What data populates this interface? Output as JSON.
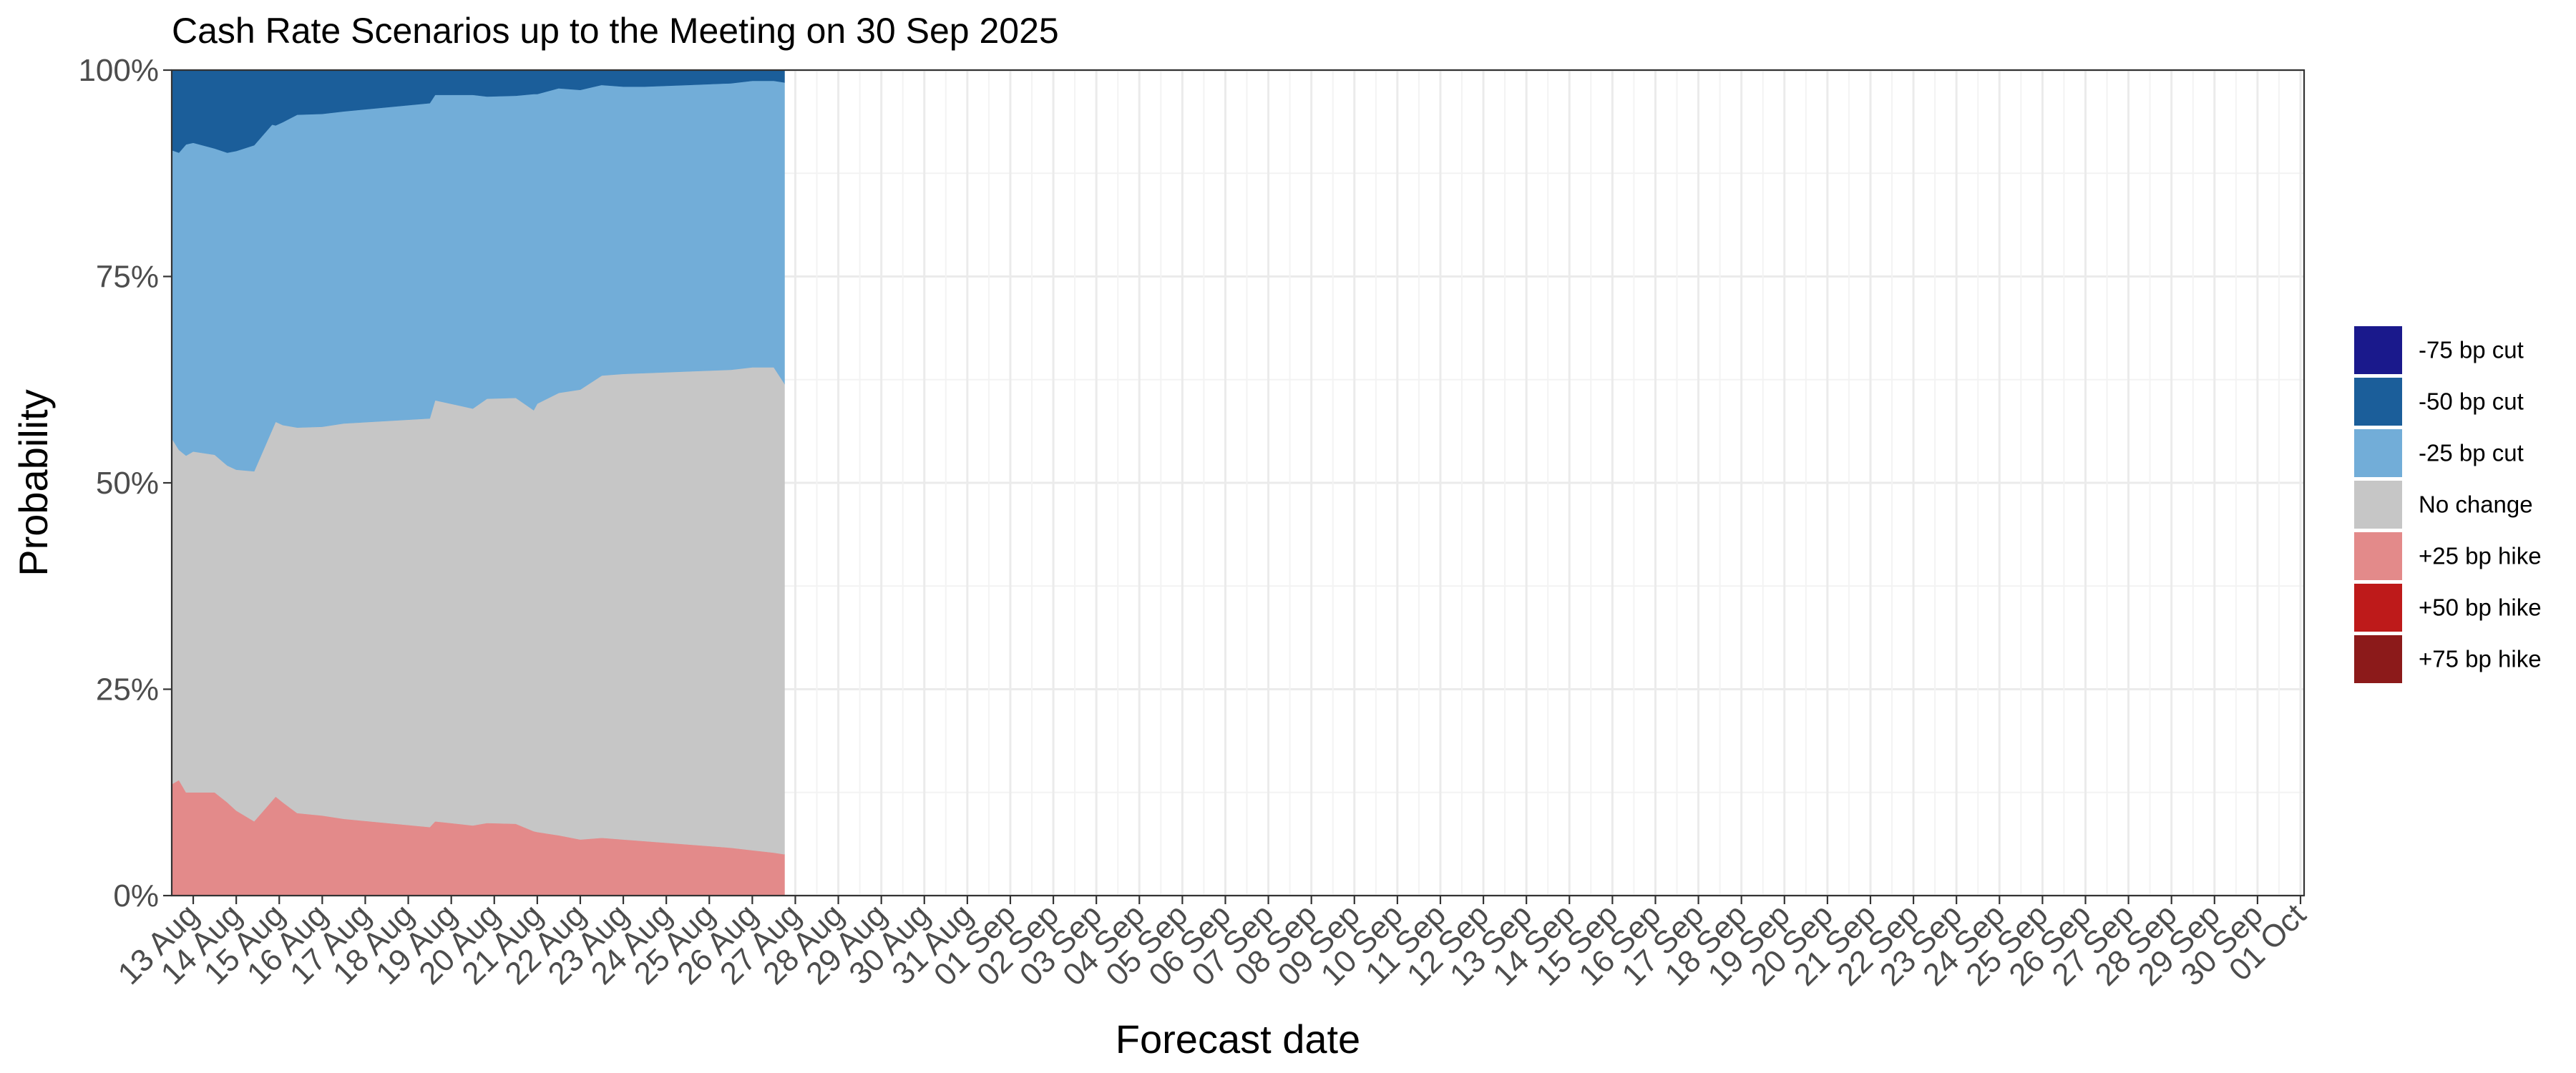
{
  "chart_data": {
    "type": "area",
    "stacked": true,
    "title": "Cash Rate Scenarios up to the Meeting on 30 Sep 2025",
    "xlabel": "Forecast date",
    "ylabel": "Probability",
    "ylim": [
      0,
      1
    ],
    "y_ticks": [
      {
        "value": 0,
        "label": "0%"
      },
      {
        "value": 0.25,
        "label": "25%"
      },
      {
        "value": 0.5,
        "label": "50%"
      },
      {
        "value": 0.75,
        "label": "75%"
      },
      {
        "value": 1,
        "label": "100%"
      }
    ],
    "xlim": [
      "2025-08-12 12:00",
      "2025-10-01 02:00"
    ],
    "x_ticks": [
      {
        "date": "2025-08-13",
        "label": "13 Aug"
      },
      {
        "date": "2025-08-14",
        "label": "14 Aug"
      },
      {
        "date": "2025-08-15",
        "label": "15 Aug"
      },
      {
        "date": "2025-08-16",
        "label": "16 Aug"
      },
      {
        "date": "2025-08-17",
        "label": "17 Aug"
      },
      {
        "date": "2025-08-18",
        "label": "18 Aug"
      },
      {
        "date": "2025-08-19",
        "label": "19 Aug"
      },
      {
        "date": "2025-08-20",
        "label": "20 Aug"
      },
      {
        "date": "2025-08-21",
        "label": "21 Aug"
      },
      {
        "date": "2025-08-22",
        "label": "22 Aug"
      },
      {
        "date": "2025-08-23",
        "label": "23 Aug"
      },
      {
        "date": "2025-08-24",
        "label": "24 Aug"
      },
      {
        "date": "2025-08-25",
        "label": "25 Aug"
      },
      {
        "date": "2025-08-26",
        "label": "26 Aug"
      },
      {
        "date": "2025-08-27",
        "label": "27 Aug"
      },
      {
        "date": "2025-08-28",
        "label": "28 Aug"
      },
      {
        "date": "2025-08-29",
        "label": "29 Aug"
      },
      {
        "date": "2025-08-30",
        "label": "30 Aug"
      },
      {
        "date": "2025-08-31",
        "label": "31 Aug"
      },
      {
        "date": "2025-09-01",
        "label": "01 Sep"
      },
      {
        "date": "2025-09-02",
        "label": "02 Sep"
      },
      {
        "date": "2025-09-03",
        "label": "03 Sep"
      },
      {
        "date": "2025-09-04",
        "label": "04 Sep"
      },
      {
        "date": "2025-09-05",
        "label": "05 Sep"
      },
      {
        "date": "2025-09-06",
        "label": "06 Sep"
      },
      {
        "date": "2025-09-07",
        "label": "07 Sep"
      },
      {
        "date": "2025-09-08",
        "label": "08 Sep"
      },
      {
        "date": "2025-09-09",
        "label": "09 Sep"
      },
      {
        "date": "2025-09-10",
        "label": "10 Sep"
      },
      {
        "date": "2025-09-11",
        "label": "11 Sep"
      },
      {
        "date": "2025-09-12",
        "label": "12 Sep"
      },
      {
        "date": "2025-09-13",
        "label": "13 Sep"
      },
      {
        "date": "2025-09-14",
        "label": "14 Sep"
      },
      {
        "date": "2025-09-15",
        "label": "15 Sep"
      },
      {
        "date": "2025-09-16",
        "label": "16 Sep"
      },
      {
        "date": "2025-09-17",
        "label": "17 Sep"
      },
      {
        "date": "2025-09-18",
        "label": "18 Sep"
      },
      {
        "date": "2025-09-19",
        "label": "19 Sep"
      },
      {
        "date": "2025-09-20",
        "label": "20 Sep"
      },
      {
        "date": "2025-09-21",
        "label": "21 Sep"
      },
      {
        "date": "2025-09-22",
        "label": "22 Sep"
      },
      {
        "date": "2025-09-23",
        "label": "23 Sep"
      },
      {
        "date": "2025-09-24",
        "label": "24 Sep"
      },
      {
        "date": "2025-09-25",
        "label": "25 Sep"
      },
      {
        "date": "2025-09-26",
        "label": "26 Sep"
      },
      {
        "date": "2025-09-27",
        "label": "27 Sep"
      },
      {
        "date": "2025-09-28",
        "label": "28 Sep"
      },
      {
        "date": "2025-09-29",
        "label": "29 Sep"
      },
      {
        "date": "2025-09-30",
        "label": "30 Sep"
      },
      {
        "date": "2025-10-01",
        "label": "01 Oct"
      }
    ],
    "grid": true,
    "legend_position": "right",
    "x": [
      "2025-08-12 12:00",
      "2025-08-12 16:00",
      "2025-08-12 20:00",
      "2025-08-13 00:00",
      "2025-08-13 12:00",
      "2025-08-13 19:00",
      "2025-08-14 00:00",
      "2025-08-14 10:00",
      "2025-08-14 20:00",
      "2025-08-14 22:00",
      "2025-08-15 02:00",
      "2025-08-15 10:00",
      "2025-08-16 00:00",
      "2025-08-16 12:00",
      "2025-08-17 12:00",
      "2025-08-18 12:00",
      "2025-08-18 15:00",
      "2025-08-19 12:00",
      "2025-08-19 20:00",
      "2025-08-20 12:00",
      "2025-08-20 22:00",
      "2025-08-21 00:00",
      "2025-08-21 12:00",
      "2025-08-22 00:00",
      "2025-08-22 12:00",
      "2025-08-23 00:00",
      "2025-08-23 12:00",
      "2025-08-24 12:00",
      "2025-08-25 12:00",
      "2025-08-26 00:00",
      "2025-08-26 12:00",
      "2025-08-26 18:00"
    ],
    "series": [
      {
        "name": "+25 bp hike",
        "color": "#E38A8A",
        "values": [
          0.135,
          0.14,
          0.125,
          0.125,
          0.125,
          0.113,
          0.103,
          0.09,
          0.115,
          0.12,
          0.113,
          0.1,
          0.097,
          0.093,
          0.088,
          0.083,
          0.09,
          0.085,
          0.088,
          0.087,
          0.078,
          0.077,
          0.073,
          0.068,
          0.07,
          0.068,
          0.066,
          0.062,
          0.058,
          0.055,
          0.052,
          0.05
        ]
      },
      {
        "name": "No change",
        "color": "#C6C6C6",
        "values": [
          0.419,
          0.4,
          0.408,
          0.413,
          0.409,
          0.408,
          0.413,
          0.424,
          0.449,
          0.454,
          0.457,
          0.467,
          0.471,
          0.479,
          0.487,
          0.495,
          0.51,
          0.505,
          0.514,
          0.516,
          0.51,
          0.519,
          0.536,
          0.545,
          0.56,
          0.564,
          0.567,
          0.573,
          0.579,
          0.585,
          0.588,
          0.57
        ]
      },
      {
        "name": "-25 bp cut",
        "color": "#72ADD8",
        "values": [
          0.349,
          0.36,
          0.377,
          0.374,
          0.371,
          0.379,
          0.386,
          0.395,
          0.37,
          0.359,
          0.367,
          0.379,
          0.379,
          0.378,
          0.38,
          0.382,
          0.37,
          0.38,
          0.366,
          0.366,
          0.383,
          0.375,
          0.369,
          0.363,
          0.352,
          0.348,
          0.347,
          0.347,
          0.347,
          0.347,
          0.347,
          0.365
        ]
      },
      {
        "name": "-50 bp cut",
        "color": "#1B5E9A",
        "values": [
          0.097,
          0.1,
          0.09,
          0.088,
          0.095,
          0.1,
          0.098,
          0.091,
          0.066,
          0.067,
          0.063,
          0.054,
          0.053,
          0.05,
          0.045,
          0.04,
          0.03,
          0.03,
          0.032,
          0.031,
          0.029,
          0.029,
          0.022,
          0.024,
          0.018,
          0.02,
          0.02,
          0.018,
          0.016,
          0.013,
          0.013,
          0.015
        ]
      },
      {
        "name": "-75 bp cut",
        "color": "#1A198C",
        "values": [
          0,
          0,
          0,
          0,
          0,
          0,
          0,
          0,
          0,
          0,
          0,
          0,
          0,
          0,
          0,
          0,
          0,
          0,
          0,
          0,
          0,
          0,
          0,
          0,
          0,
          0,
          0,
          0,
          0,
          0,
          0,
          0
        ]
      },
      {
        "name": "+50 bp hike",
        "color": "#BE1A1A",
        "values": [
          0,
          0,
          0,
          0,
          0,
          0,
          0,
          0,
          0,
          0,
          0,
          0,
          0,
          0,
          0,
          0,
          0,
          0,
          0,
          0,
          0,
          0,
          0,
          0,
          0,
          0,
          0,
          0,
          0,
          0,
          0,
          0
        ]
      },
      {
        "name": "+75 bp hike",
        "color": "#8C1A1A",
        "values": [
          0,
          0,
          0,
          0,
          0,
          0,
          0,
          0,
          0,
          0,
          0,
          0,
          0,
          0,
          0,
          0,
          0,
          0,
          0,
          0,
          0,
          0,
          0,
          0,
          0,
          0,
          0,
          0,
          0,
          0,
          0,
          0
        ]
      }
    ],
    "stack_order_bottom_to_top": [
      "+75 bp hike",
      "+50 bp hike",
      "+25 bp hike",
      "No change",
      "-25 bp cut",
      "-50 bp cut",
      "-75 bp cut"
    ],
    "legend": [
      {
        "label": "-75 bp cut",
        "color": "#1A198C"
      },
      {
        "label": "-50 bp cut",
        "color": "#1B5E9A"
      },
      {
        "label": "-25 bp cut",
        "color": "#72ADD8"
      },
      {
        "label": "No change",
        "color": "#C6C6C6"
      },
      {
        "label": "+25 bp hike",
        "color": "#E38A8A"
      },
      {
        "label": "+50 bp hike",
        "color": "#BE1A1A"
      },
      {
        "label": "+75 bp hike",
        "color": "#8C1A1A"
      }
    ]
  }
}
